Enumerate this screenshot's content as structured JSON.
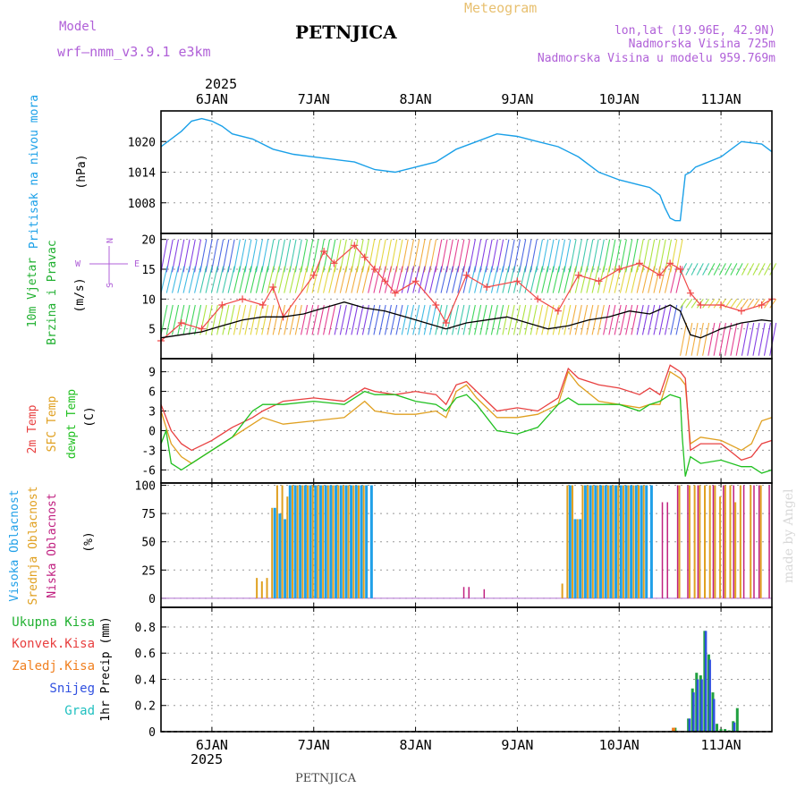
{
  "header": {
    "model_label": "Model",
    "model_name": "wrf—nmm_v3.9.1  e3km",
    "title": "PETNJICA",
    "meteogram": "Meteogram",
    "lonlat": "lon,lat (19.96E, 42.9N)",
    "elevation": "Nadmorska Visina 725m",
    "model_elevation": "Nadmorska Visina u modelu 959.769m",
    "year_top": "2025",
    "year_bottom": "2025",
    "footer": "PETNJICA",
    "watermark": "made by Angel"
  },
  "colors": {
    "pressure": "#1aa0e8",
    "wind_line": "#000000",
    "gust": "#f04848",
    "temp": "#e84040",
    "sfc": "#e0a020",
    "dew": "#20c020",
    "cloud_high": "#20a0e8",
    "cloud_mid": "#e0a020",
    "cloud_low": "#c02080",
    "precip_total": "#20a040",
    "precip_conv": "#e84040",
    "precip_frozen": "#f08020",
    "precip_snow": "#3050e0",
    "precip_hail": "#20c0c0"
  },
  "chart_data": {
    "type": "meteogram",
    "x_axis": {
      "unit": "days since 6JAN 00Z",
      "range": [
        -0.5,
        5.5
      ],
      "ticks": [
        0,
        1,
        2,
        3,
        4,
        5
      ],
      "tick_labels": [
        "6JAN",
        "7JAN",
        "8JAN",
        "9JAN",
        "10JAN",
        "11JAN"
      ]
    },
    "panels": [
      {
        "id": "pressure",
        "ylabel_left": "Pritisak na nivou mora",
        "ylabel_unit": "(hPa)",
        "ylim": [
          1002,
          1026
        ],
        "yticks": [
          1008,
          1014,
          1020
        ],
        "series": [
          {
            "name": "MSLP",
            "x": [
              -0.5,
              -0.3,
              -0.2,
              -0.1,
              0.0,
              0.1,
              0.2,
              0.4,
              0.6,
              0.8,
              1.0,
              1.2,
              1.4,
              1.6,
              1.8,
              2.0,
              2.2,
              2.4,
              2.6,
              2.8,
              3.0,
              3.2,
              3.4,
              3.6,
              3.8,
              4.0,
              4.2,
              4.3,
              4.4,
              4.45,
              4.5,
              4.55,
              4.6,
              4.65,
              4.7,
              4.75,
              5.0,
              5.2,
              5.4,
              5.5
            ],
            "y": [
              1019,
              1022,
              1024,
              1024.5,
              1024,
              1023,
              1021.5,
              1020.5,
              1018.5,
              1017.5,
              1017,
              1016.5,
              1016,
              1014.5,
              1014,
              1015,
              1016,
              1018.5,
              1020,
              1021.5,
              1021,
              1020,
              1019,
              1017,
              1014,
              1012.5,
              1011.5,
              1011,
              1009.5,
              1007,
              1005,
              1004.5,
              1004.5,
              1013.5,
              1014,
              1015,
              1017,
              1020,
              1019.5,
              1018
            ]
          }
        ]
      },
      {
        "id": "wind",
        "ylabel_left": "10m Vjetar Brzina i Pravac",
        "ylabel_unit": "(m/s)",
        "compass": {
          "n": "N",
          "s": "S",
          "e": "E",
          "w": "W"
        },
        "ylim": [
          0,
          21
        ],
        "yticks": [
          5,
          10,
          15,
          20
        ],
        "series": [
          {
            "name": "wind speed",
            "x": [
              -0.5,
              -0.3,
              -0.1,
              0.1,
              0.3,
              0.5,
              0.7,
              0.9,
              1.1,
              1.3,
              1.5,
              1.7,
              1.9,
              2.1,
              2.3,
              2.5,
              2.7,
              2.9,
              3.1,
              3.3,
              3.5,
              3.7,
              3.9,
              4.1,
              4.3,
              4.5,
              4.6,
              4.7,
              4.8,
              5.0,
              5.2,
              5.4,
              5.5
            ],
            "y": [
              3.5,
              4,
              4.5,
              5.5,
              6.5,
              7,
              7,
              7.5,
              8.5,
              9.5,
              8.5,
              8,
              7,
              6,
              5,
              6,
              6.5,
              7,
              6,
              5,
              5.5,
              6.5,
              7,
              8,
              7.5,
              9,
              8,
              4,
              3.5,
              5,
              6,
              6.5,
              6.3
            ]
          },
          {
            "name": "gust",
            "x": [
              -0.5,
              -0.3,
              -0.1,
              0.1,
              0.3,
              0.5,
              0.6,
              0.7,
              1.0,
              1.1,
              1.2,
              1.4,
              1.5,
              1.6,
              1.7,
              1.8,
              2.0,
              2.2,
              2.3,
              2.5,
              2.7,
              3.0,
              3.2,
              3.4,
              3.6,
              3.8,
              4.0,
              4.2,
              4.4,
              4.5,
              4.6,
              4.7,
              4.8,
              5.0,
              5.2,
              5.4,
              5.5
            ],
            "y": [
              3,
              6,
              5,
              9,
              10,
              9,
              12,
              7,
              14,
              18,
              16,
              19,
              17,
              15,
              13,
              11,
              13,
              9,
              6,
              14,
              12,
              13,
              10,
              8,
              14,
              13,
              15,
              16,
              14,
              16,
              15,
              11,
              9,
              9,
              8,
              9,
              10
            ]
          }
        ]
      },
      {
        "id": "temperature",
        "ylabel_left": [
          "2m Temp",
          "SFC Temp",
          "dewpt Temp"
        ],
        "ylabel_unit": "(C)",
        "ylim": [
          -8,
          11
        ],
        "yticks": [
          -6,
          -3,
          0,
          3,
          6,
          9
        ],
        "series": [
          {
            "name": "2m Temp",
            "x": [
              -0.5,
              -0.4,
              -0.3,
              -0.2,
              0.0,
              0.2,
              0.4,
              0.5,
              0.7,
              1.0,
              1.3,
              1.5,
              1.6,
              1.8,
              2.0,
              2.2,
              2.3,
              2.4,
              2.5,
              2.6,
              2.8,
              3.0,
              3.2,
              3.4,
              3.5,
              3.6,
              3.8,
              4.0,
              4.2,
              4.3,
              4.4,
              4.5,
              4.6,
              4.65,
              4.7,
              4.8,
              5.0,
              5.2,
              5.3,
              5.4,
              5.5
            ],
            "y": [
              4,
              0,
              -2,
              -3,
              -1.5,
              0.5,
              2,
              3,
              4.5,
              5,
              4.5,
              6.5,
              6,
              5.5,
              6,
              5.5,
              4,
              7,
              7.5,
              6,
              3,
              3.5,
              3,
              5,
              9.5,
              8,
              7,
              6.5,
              5.5,
              6.5,
              5.5,
              10,
              9,
              8,
              -3,
              -2,
              -2,
              -4.5,
              -4,
              -2,
              -1.5
            ]
          },
          {
            "name": "SFC Temp",
            "x": [
              -0.5,
              -0.4,
              -0.3,
              -0.2,
              0.0,
              0.2,
              0.4,
              0.5,
              0.7,
              1.0,
              1.3,
              1.5,
              1.6,
              1.8,
              2.0,
              2.2,
              2.3,
              2.4,
              2.5,
              2.6,
              2.8,
              3.0,
              3.2,
              3.4,
              3.5,
              3.6,
              3.8,
              4.0,
              4.2,
              4.3,
              4.4,
              4.5,
              4.6,
              4.65,
              4.7,
              4.8,
              5.0,
              5.2,
              5.3,
              5.4,
              5.5
            ],
            "y": [
              3,
              -2,
              -4,
              -5,
              -3,
              -1,
              1,
              2,
              1,
              1.5,
              2,
              4.5,
              3,
              2.5,
              2.5,
              3,
              2,
              6,
              7,
              5,
              2,
              2,
              2.5,
              4,
              9,
              7,
              4.5,
              4,
              3.5,
              4,
              4,
              9,
              8,
              7,
              -2,
              -1,
              -1.5,
              -3,
              -2,
              1.5,
              2
            ]
          },
          {
            "name": "dewpt Temp",
            "x": [
              -0.5,
              -0.45,
              -0.4,
              -0.3,
              -0.2,
              0.0,
              0.2,
              0.4,
              0.5,
              0.7,
              1.0,
              1.3,
              1.5,
              1.6,
              1.8,
              2.0,
              2.2,
              2.3,
              2.4,
              2.5,
              2.6,
              2.8,
              3.0,
              3.2,
              3.4,
              3.5,
              3.6,
              3.8,
              4.0,
              4.2,
              4.3,
              4.4,
              4.5,
              4.6,
              4.62,
              4.65,
              4.7,
              4.8,
              5.0,
              5.2,
              5.3,
              5.4,
              5.5
            ],
            "y": [
              -2,
              0,
              -5,
              -6,
              -5,
              -3,
              -1,
              3,
              4,
              4,
              4.5,
              4,
              6,
              5.5,
              5.5,
              4.5,
              4,
              3,
              5,
              5.5,
              4,
              0,
              -0.5,
              0.5,
              4,
              5,
              4,
              4,
              4,
              3,
              4,
              4.5,
              5.5,
              5,
              -1,
              -7,
              -4,
              -5,
              -4.5,
              -5.5,
              -5.5,
              -6.5,
              -6
            ]
          }
        ]
      },
      {
        "id": "cloud",
        "ylabel_left": [
          "Visoka Oblacnost",
          "Srednja Oblacnost",
          "Niska Oblacnost"
        ],
        "ylabel_unit": "(%)",
        "ylim": [
          -8,
          102
        ],
        "yticks": [
          0,
          25,
          50,
          75,
          100
        ],
        "high": {
          "x": [
            0.5,
            0.55,
            0.6,
            0.65,
            0.7,
            0.75,
            0.8,
            0.85,
            0.9,
            0.95,
            1.0,
            1.05,
            1.1,
            1.15,
            1.2,
            1.25,
            1.3,
            1.35,
            1.4,
            1.45,
            1.5,
            1.55,
            3.5,
            3.55,
            3.6,
            3.65,
            3.7,
            3.75,
            3.8,
            3.85,
            3.9,
            3.95,
            4.0,
            4.05,
            4.1,
            4.15,
            4.2,
            4.25,
            4.3
          ],
          "y": [
            0,
            0,
            80,
            75,
            70,
            100,
            100,
            100,
            100,
            100,
            100,
            100,
            100,
            100,
            100,
            100,
            100,
            100,
            100,
            100,
            100,
            100,
            100,
            70,
            70,
            100,
            100,
            100,
            100,
            100,
            100,
            100,
            100,
            100,
            100,
            100,
            100,
            100,
            100
          ]
        },
        "mid": {
          "x": [
            0.45,
            0.5,
            0.55,
            0.6,
            0.65,
            0.7,
            0.75,
            0.8,
            0.85,
            0.9,
            0.95,
            1.0,
            1.05,
            1.1,
            1.15,
            1.2,
            1.25,
            1.3,
            1.35,
            1.4,
            1.45,
            1.5,
            3.45,
            3.5,
            3.55,
            3.6,
            3.65,
            3.7,
            3.75,
            3.8,
            3.85,
            3.9,
            3.95,
            4.0,
            4.05,
            4.1,
            4.15,
            4.2,
            4.25,
            4.6,
            4.7,
            4.75,
            4.8,
            4.85,
            4.9,
            4.95,
            5.0,
            5.05,
            5.1,
            5.15,
            5.2,
            5.3,
            5.4
          ],
          "y": [
            18,
            15,
            18,
            80,
            100,
            100,
            90,
            100,
            100,
            100,
            100,
            100,
            100,
            100,
            100,
            100,
            100,
            100,
            100,
            100,
            100,
            100,
            13,
            100,
            100,
            70,
            100,
            100,
            100,
            100,
            100,
            100,
            100,
            100,
            100,
            100,
            100,
            100,
            100,
            100,
            100,
            100,
            100,
            100,
            100,
            100,
            90,
            100,
            100,
            85,
            100,
            100,
            100
          ]
        },
        "low": {
          "x": [
            2.45,
            2.5,
            2.65,
            4.4,
            4.45,
            4.55,
            4.65,
            4.75,
            4.9,
            5.0,
            5.1,
            5.2,
            5.3,
            5.35,
            5.45
          ],
          "y": [
            10,
            10,
            8,
            85,
            85,
            100,
            100,
            100,
            100,
            100,
            100,
            100,
            100,
            100,
            100
          ]
        }
      },
      {
        "id": "precip",
        "ylabel_left": [
          "Ukupna Kisa",
          "Konvek.Kisa",
          "Zaledj.Kisa",
          "Snijeg",
          "Grad"
        ],
        "ylabel_unit": "1hr Precip (mm)",
        "ylim": [
          0,
          0.95
        ],
        "yticks": [
          0,
          0.2,
          0.4,
          0.6,
          0.8
        ],
        "yticklabels": [
          "0",
          "0.2",
          "0.4",
          "0.6",
          "0.8"
        ],
        "total": {
          "x": [
            4.55,
            4.68,
            4.72,
            4.76,
            4.8,
            4.84,
            4.88,
            4.92,
            4.96,
            5.0,
            5.04,
            5.08,
            5.12,
            5.16
          ],
          "y": [
            0.03,
            0.1,
            0.33,
            0.45,
            0.43,
            0.77,
            0.59,
            0.3,
            0.06,
            0.02,
            0.02,
            0.01,
            0.08,
            0.18
          ]
        },
        "snow": {
          "x": [
            4.68,
            4.72,
            4.76,
            4.8,
            4.84,
            4.88,
            4.92,
            5.12
          ],
          "y": [
            0.1,
            0.3,
            0.4,
            0.4,
            0.77,
            0.55,
            0.25,
            0.07
          ]
        },
        "frozen": {
          "x": [
            4.53
          ],
          "y": [
            0.03
          ]
        }
      }
    ]
  }
}
